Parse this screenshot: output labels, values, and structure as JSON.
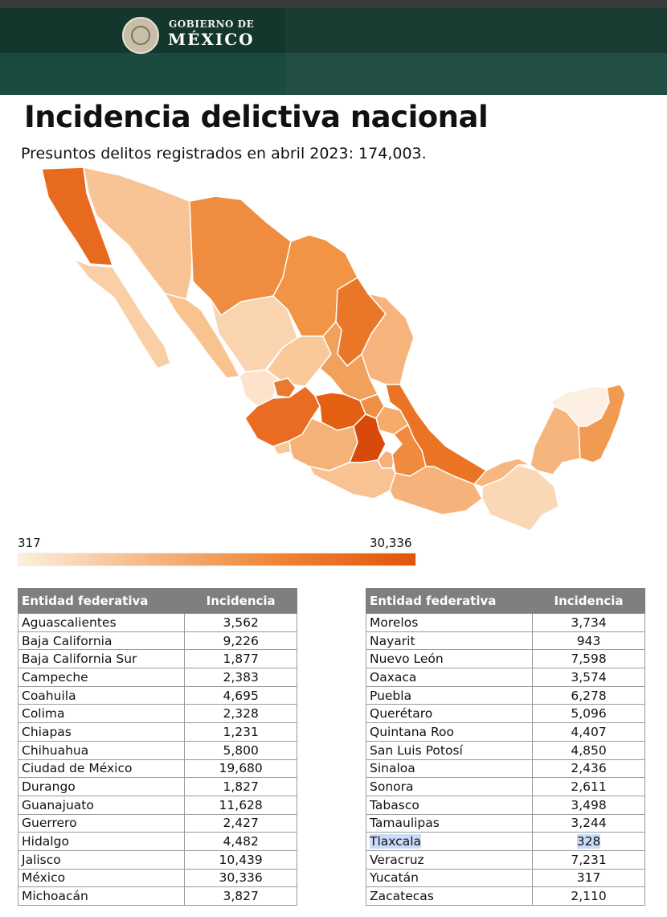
{
  "header": {
    "gov_line1": "GOBIERNO DE",
    "gov_line2": "MÉXICO"
  },
  "title": "Incidencia delictiva nacional",
  "subtitle": "Presuntos delitos registrados en abril 2023: 174,003.",
  "legend": {
    "min_label": "317",
    "max_label": "30,336",
    "min": 317,
    "max": 30336,
    "color_low": "#fdeedd",
    "color_high": "#e2540b"
  },
  "table_headers": {
    "entity": "Entidad federativa",
    "incidence": "Incidencia"
  },
  "table_left": [
    {
      "entity": "Aguascalientes",
      "incidence": "3,562"
    },
    {
      "entity": "Baja California",
      "incidence": "9,226"
    },
    {
      "entity": "Baja California Sur",
      "incidence": "1,877"
    },
    {
      "entity": "Campeche",
      "incidence": "2,383"
    },
    {
      "entity": "Coahuila",
      "incidence": "4,695"
    },
    {
      "entity": "Colima",
      "incidence": "2,328"
    },
    {
      "entity": "Chiapas",
      "incidence": "1,231"
    },
    {
      "entity": "Chihuahua",
      "incidence": "5,800"
    },
    {
      "entity": "Ciudad de México",
      "incidence": "19,680"
    },
    {
      "entity": "Durango",
      "incidence": "1,827"
    },
    {
      "entity": "Guanajuato",
      "incidence": "11,628"
    },
    {
      "entity": "Guerrero",
      "incidence": "2,427"
    },
    {
      "entity": "Hidalgo",
      "incidence": "4,482"
    },
    {
      "entity": "Jalisco",
      "incidence": "10,439"
    },
    {
      "entity": "México",
      "incidence": "30,336"
    },
    {
      "entity": "Michoacán",
      "incidence": "3,827"
    }
  ],
  "table_right": [
    {
      "entity": "Morelos",
      "incidence": "3,734"
    },
    {
      "entity": "Nayarit",
      "incidence": "943"
    },
    {
      "entity": "Nuevo León",
      "incidence": "7,598"
    },
    {
      "entity": "Oaxaca",
      "incidence": "3,574"
    },
    {
      "entity": "Puebla",
      "incidence": "6,278"
    },
    {
      "entity": "Querétaro",
      "incidence": "5,096"
    },
    {
      "entity": "Quintana Roo",
      "incidence": "4,407"
    },
    {
      "entity": "San Luis Potosí",
      "incidence": "4,850"
    },
    {
      "entity": "Sinaloa",
      "incidence": "2,436"
    },
    {
      "entity": "Sonora",
      "incidence": "2,611"
    },
    {
      "entity": "Tabasco",
      "incidence": "3,498"
    },
    {
      "entity": "Tamaulipas",
      "incidence": "3,244"
    },
    {
      "entity": "Tlaxcala",
      "incidence": "328",
      "highlighted": true
    },
    {
      "entity": "Veracruz",
      "incidence": "7,231"
    },
    {
      "entity": "Yucatán",
      "incidence": "317"
    },
    {
      "entity": "Zacatecas",
      "incidence": "2,110"
    }
  ]
}
